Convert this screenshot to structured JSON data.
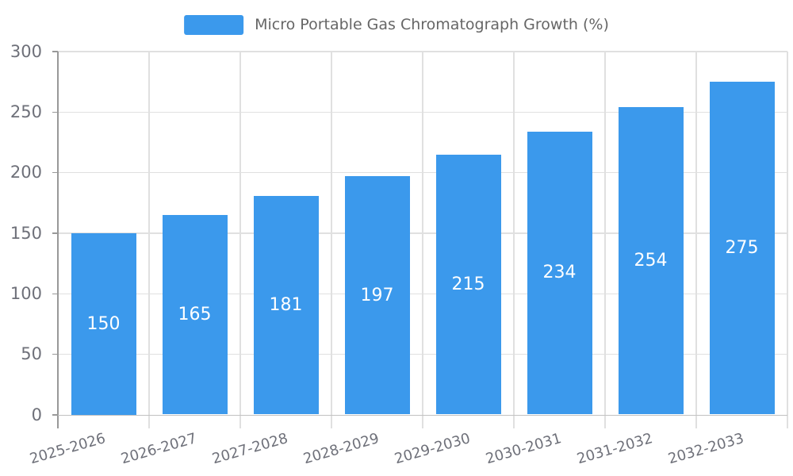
{
  "legend": {
    "label": "Micro Portable Gas Chromatograph Growth (%)"
  },
  "colors": {
    "background": "#ffffff",
    "bar": "#3b99ec",
    "bar_label": "#ffffff",
    "grid_line": "#e0e0e0",
    "y_axis_line": "#999999",
    "x_axis_line": "#c2c2c2",
    "axis_text": "#6e7079",
    "legend_text": "#666666"
  },
  "chart_data": {
    "type": "bar",
    "title": "",
    "series_name": "Micro Portable Gas Chromatograph Growth (%)",
    "categories": [
      "2025-2026",
      "2026-2027",
      "2027-2028",
      "2028-2029",
      "2029-2030",
      "2030-2031",
      "2031-2032",
      "2032-2033"
    ],
    "values": [
      150,
      165,
      181,
      197,
      215,
      234,
      254,
      275
    ],
    "xlabel": "",
    "ylabel": "",
    "ylim": [
      0,
      300
    ],
    "yticks": [
      0,
      50,
      100,
      150,
      200,
      250,
      300
    ],
    "grid": true,
    "legend_position": "top",
    "value_labels": "inside-center",
    "x_label_rotation_deg": 16
  }
}
